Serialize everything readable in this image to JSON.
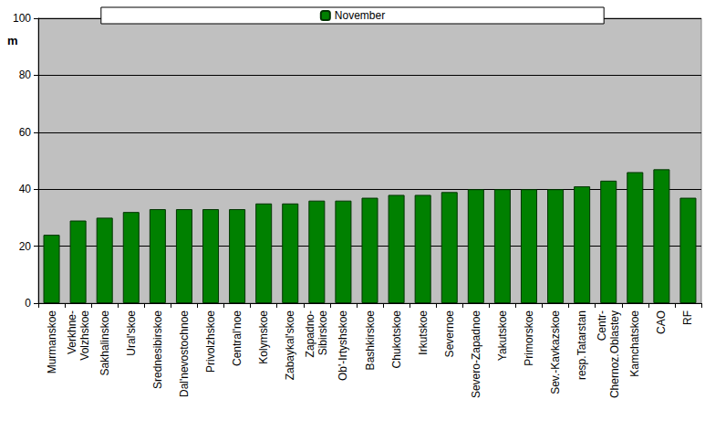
{
  "chart_data": {
    "type": "bar",
    "y_label": "m",
    "categories": [
      "Murmanskoe",
      "Verkhne-\nVolzhskoe",
      "Sakhalinskoe",
      "Ural'skoe",
      "Srednesibirskoe",
      "Dal'nevostochnoe",
      "Privolzhskoe",
      "Central'noe",
      "Kolymskoe",
      "Zabaykal'skoe",
      "Zapadno-\nSibirskoe",
      "Ob'-Irtyshskoe",
      "Bashkirskoe",
      "Chukotskoe",
      "Irkutskoe",
      "Severnoe",
      "Severo-Zapadnoe",
      "Yakutskoe",
      "Primorskoe",
      "Sev.-Kavkazskoe",
      "resp.Tatarstan",
      "Centr-\nChernoz.Oblastey",
      "Kamchatskoe",
      "CAO",
      "RF"
    ],
    "series": [
      {
        "name": "November",
        "color": "#008000",
        "values": [
          24,
          29,
          30,
          32,
          33,
          33,
          33,
          33,
          35,
          35,
          36,
          36,
          37,
          38,
          38,
          39,
          40,
          40,
          40,
          40,
          41,
          43,
          46,
          47,
          37
        ]
      }
    ],
    "ylim": [
      0,
      100
    ],
    "yticks": [
      0,
      20,
      40,
      60,
      80,
      100
    ],
    "grid": true,
    "legend": "top"
  }
}
